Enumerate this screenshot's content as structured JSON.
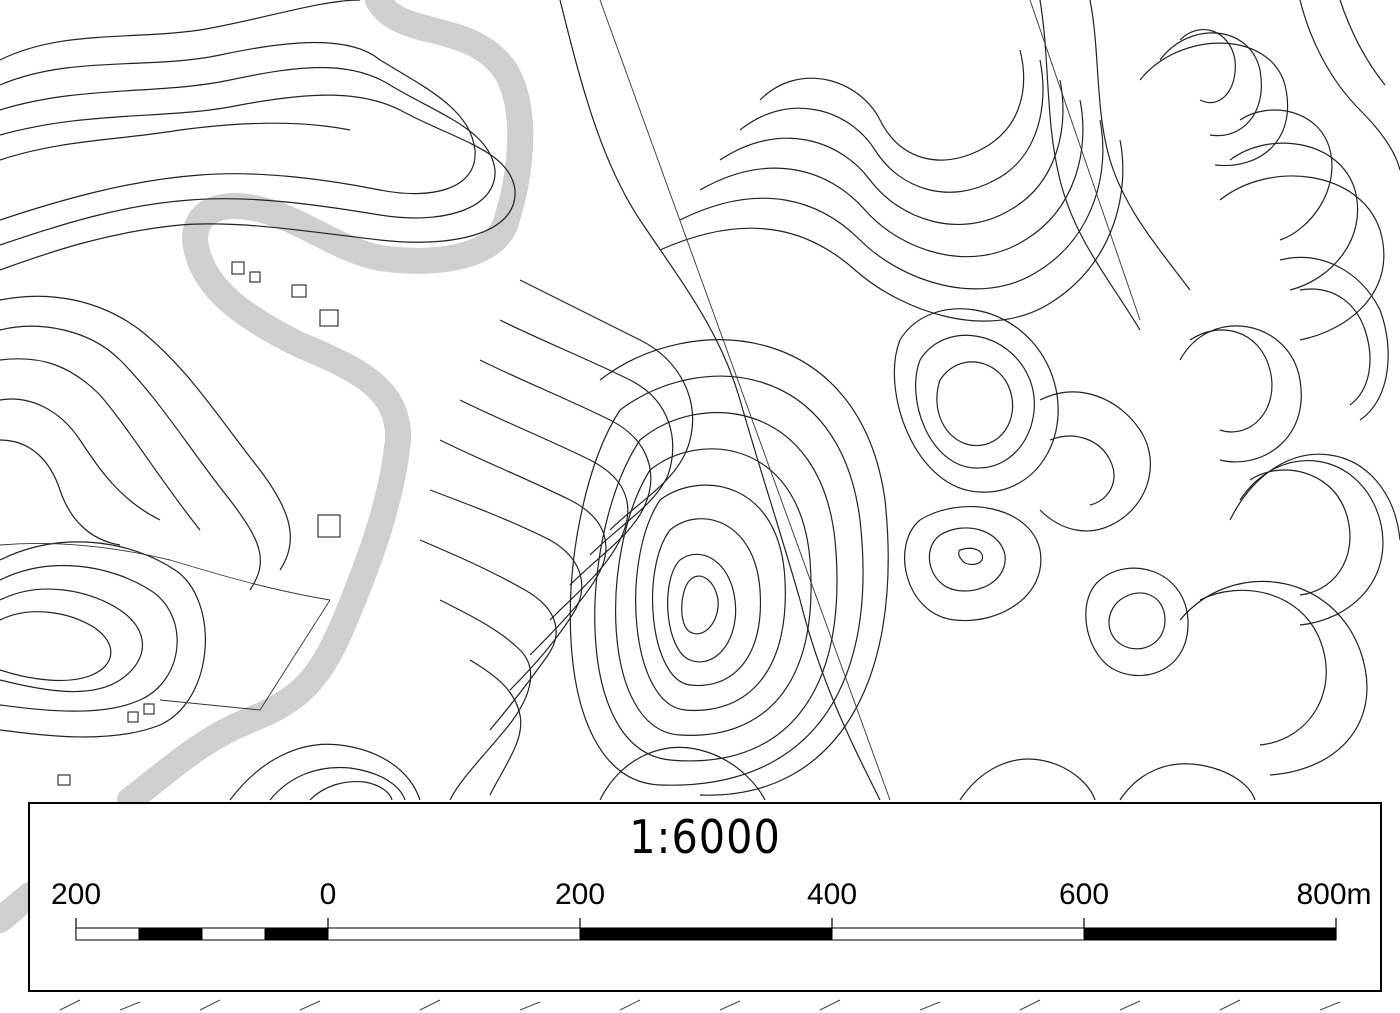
{
  "map": {
    "scale_text": "1:6000",
    "labels": [
      "200",
      "0",
      "200",
      "400",
      "600",
      "800m"
    ]
  },
  "colors": {
    "contour": "#222222",
    "road_shade": "#cfcfcf",
    "segment_dark": "#000000",
    "segment_light": "#ffffff"
  }
}
